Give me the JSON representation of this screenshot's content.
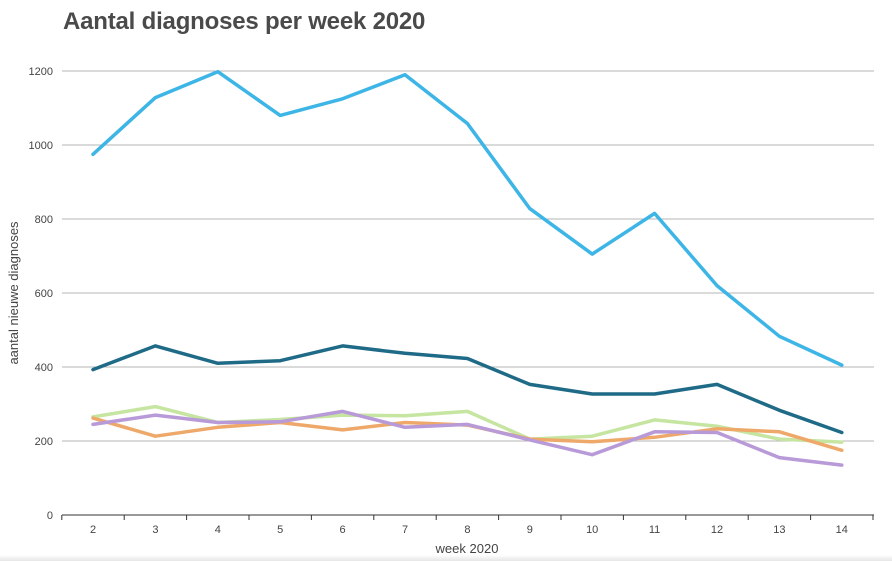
{
  "chart_data": {
    "type": "line",
    "title": "Aantal diagnoses per week 2020",
    "xlabel": "week 2020",
    "ylabel": "aantal nieuwe diagnoses",
    "x": [
      2,
      3,
      4,
      5,
      6,
      7,
      8,
      9,
      10,
      11,
      12,
      13,
      14
    ],
    "ylim": [
      0,
      1200
    ],
    "yticks": [
      0,
      200,
      400,
      600,
      800,
      1000,
      1200
    ],
    "grid": true,
    "legend": "none",
    "series": [
      {
        "color": "#3db5e6",
        "values": [
          975,
          1128,
          1198,
          1080,
          1125,
          1190,
          1058,
          828,
          705,
          815,
          620,
          483,
          405
        ]
      },
      {
        "color": "#1f6b87",
        "values": [
          393,
          457,
          410,
          417,
          457,
          437,
          423,
          353,
          327,
          327,
          353,
          283,
          223
        ]
      },
      {
        "color": "#c5e5a0",
        "values": [
          265,
          293,
          250,
          258,
          270,
          268,
          280,
          205,
          213,
          257,
          240,
          205,
          197
        ]
      },
      {
        "color": "#eea96a",
        "values": [
          262,
          213,
          237,
          250,
          230,
          250,
          243,
          205,
          198,
          210,
          233,
          225,
          175
        ]
      },
      {
        "color": "#b89ad8",
        "values": [
          245,
          270,
          250,
          252,
          280,
          237,
          245,
          203,
          163,
          225,
          223,
          155,
          135
        ]
      }
    ]
  }
}
